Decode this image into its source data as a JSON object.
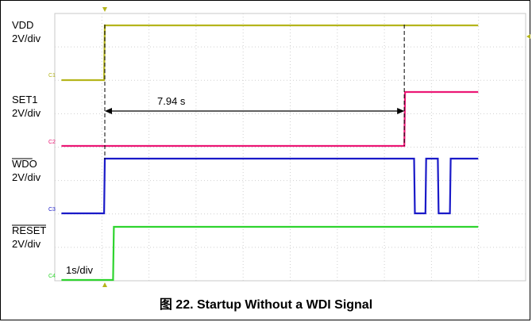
{
  "chart_data": {
    "type": "line",
    "title": "",
    "timebase": "1s/div",
    "time_divisions": 10,
    "grid": true,
    "annotation": {
      "text": "7.94 s",
      "from_s": 0.0,
      "to_s": 7.94
    },
    "channels": [
      {
        "id": "C1",
        "name": "VDD",
        "scale": "2V/div",
        "color": "#b5b51c",
        "overline": false,
        "points": [
          [
            -1.15,
            0
          ],
          [
            -0.02,
            0
          ],
          [
            0.0,
            1
          ],
          [
            9.9,
            1
          ]
        ]
      },
      {
        "id": "C2",
        "name": "SET1",
        "scale": "2V/div",
        "color": "#ec1775",
        "overline": false,
        "points": [
          [
            -1.15,
            0
          ],
          [
            7.94,
            0
          ],
          [
            7.96,
            1
          ],
          [
            9.9,
            1
          ]
        ]
      },
      {
        "id": "C3",
        "name": "WDO",
        "scale": "2V/div",
        "color": "#1a1ac8",
        "overline": true,
        "points": [
          [
            -1.15,
            0
          ],
          [
            -0.02,
            0
          ],
          [
            0.0,
            1
          ],
          [
            8.2,
            1
          ],
          [
            8.22,
            0
          ],
          [
            8.5,
            0
          ],
          [
            8.52,
            1
          ],
          [
            8.83,
            1
          ],
          [
            8.85,
            0
          ],
          [
            9.15,
            0
          ],
          [
            9.17,
            1
          ],
          [
            9.9,
            1
          ]
        ]
      },
      {
        "id": "C4",
        "name": "RESET",
        "scale": "2V/div",
        "color": "#2ed42e",
        "overline": true,
        "points": [
          [
            -1.15,
            0
          ],
          [
            0.22,
            0
          ],
          [
            0.24,
            1
          ],
          [
            9.9,
            1
          ]
        ]
      }
    ]
  },
  "caption": "图 22. Startup Without a WDI Signal"
}
